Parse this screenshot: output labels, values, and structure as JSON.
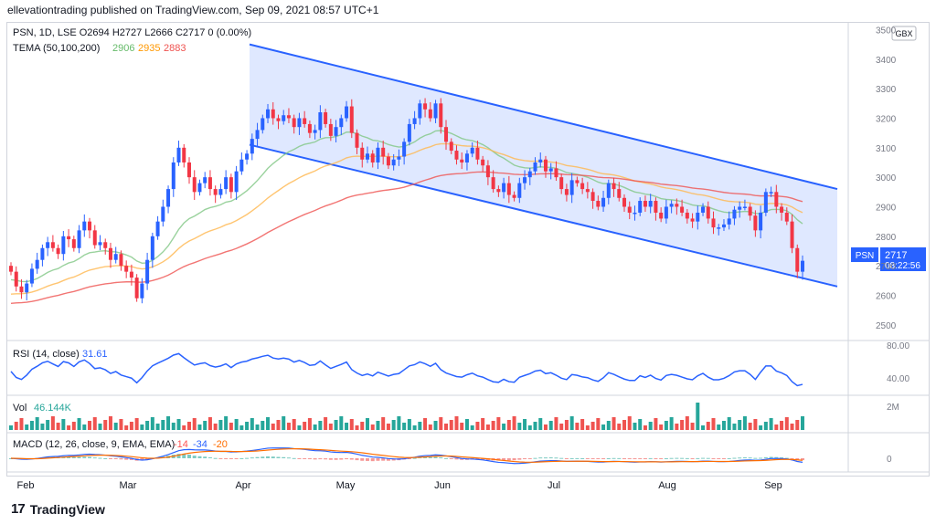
{
  "header": {
    "publish_line": "ellevationtrading published on TradingView.com, Sep 09, 2021 08:57 UTC+1"
  },
  "legend": {
    "symbol_line": "PSN, 1D, LSE  O2694  H2727  L2666  C2717  0 (0.00%)",
    "tema_label": "TEMA (50,100,200)",
    "tema_values": [
      "2906",
      "2935",
      "2883"
    ]
  },
  "price_scale": {
    "currency": "GBX",
    "ticks": [
      "3500",
      "3400",
      "3300",
      "3200",
      "3100",
      "3000",
      "2900",
      "2800",
      "2700",
      "2600",
      "2500"
    ]
  },
  "price_badge": {
    "symbol": "PSN",
    "price": "2717",
    "countdown": "08:22:56"
  },
  "rsi": {
    "label": "RSI (14, close)",
    "value": "31.61",
    "ticks": [
      "80.00",
      "40.00"
    ]
  },
  "volume": {
    "label": "Vol",
    "value": "46.144K",
    "ticks": [
      "2M"
    ]
  },
  "macd": {
    "label": "MACD (12, 26, close, 9, EMA, EMA)",
    "values": [
      "-14",
      "-34",
      "-20"
    ],
    "ticks": [
      "0"
    ]
  },
  "time_axis": [
    "Feb",
    "Mar",
    "Apr",
    "May",
    "Jun",
    "Jul",
    "Aug",
    "Sep"
  ],
  "footer": {
    "brand": "TradingView",
    "logo": "17"
  },
  "colors": {
    "up": "#2962ff",
    "down": "#f23645",
    "tema50": "#81c784",
    "tema100": "#ffb74d",
    "tema200": "#ef5350",
    "channel": "#2962ff",
    "rsi": "#2962ff",
    "macd": "#2962ff",
    "signal": "#ff6d00",
    "vol_up": "#26a69a",
    "vol_down": "#ef5350"
  },
  "chart_data": {
    "type": "candlestick",
    "y_range": [
      2450,
      3520
    ],
    "closes": [
      2680,
      2630,
      2610,
      2640,
      2690,
      2720,
      2760,
      2780,
      2760,
      2740,
      2800,
      2790,
      2760,
      2820,
      2850,
      2820,
      2770,
      2780,
      2760,
      2720,
      2740,
      2700,
      2680,
      2660,
      2590,
      2640,
      2720,
      2800,
      2850,
      2900,
      2960,
      3050,
      3100,
      3050,
      3000,
      2950,
      2980,
      3000,
      2960,
      2940,
      2960,
      3000,
      2950,
      3020,
      3060,
      3080,
      3130,
      3160,
      3200,
      3230,
      3200,
      3190,
      3210,
      3200,
      3170,
      3200,
      3180,
      3150,
      3160,
      3220,
      3180,
      3140,
      3170,
      3200,
      3240,
      3150,
      3100,
      3060,
      3080,
      3050,
      3100,
      3070,
      3040,
      3060,
      3070,
      3120,
      3180,
      3200,
      3250,
      3230,
      3200,
      3250,
      3170,
      3120,
      3090,
      3060,
      3050,
      3080,
      3100,
      3060,
      3040,
      3000,
      2960,
      2950,
      2980,
      2940,
      2930,
      2980,
      3000,
      3020,
      3050,
      3060,
      3020,
      3030,
      3000,
      2960,
      2940,
      2990,
      2980,
      2960,
      2950,
      2920,
      2900,
      2930,
      2980,
      2960,
      2930,
      2900,
      2880,
      2880,
      2920,
      2900,
      2920,
      2880,
      2860,
      2900,
      2910,
      2900,
      2880,
      2860,
      2850,
      2880,
      2900,
      2860,
      2830,
      2830,
      2840,
      2860,
      2890,
      2900,
      2900,
      2870,
      2820,
      2880,
      2950,
      2950,
      2900,
      2880,
      2850,
      2760,
      2680,
      2717
    ],
    "tema50_end": 2906,
    "tema100_end": 2935,
    "tema200_end": 2883,
    "channel": {
      "upper": [
        [
          3450,
          2960
        ]
      ],
      "lower": [
        [
          3110,
          2630
        ]
      ]
    },
    "rsi_last": 31.61,
    "volume_last": "46.144K",
    "macd_last": [
      -14,
      -34,
      -20
    ]
  }
}
